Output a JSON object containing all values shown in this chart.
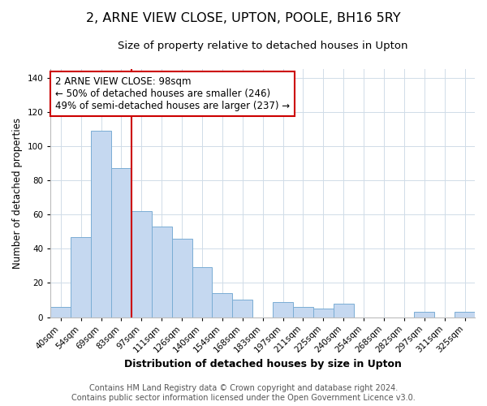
{
  "title": "2, ARNE VIEW CLOSE, UPTON, POOLE, BH16 5RY",
  "subtitle": "Size of property relative to detached houses in Upton",
  "xlabel": "Distribution of detached houses by size in Upton",
  "ylabel": "Number of detached properties",
  "bar_labels": [
    "40sqm",
    "54sqm",
    "69sqm",
    "83sqm",
    "97sqm",
    "111sqm",
    "126sqm",
    "140sqm",
    "154sqm",
    "168sqm",
    "183sqm",
    "197sqm",
    "211sqm",
    "225sqm",
    "240sqm",
    "254sqm",
    "268sqm",
    "282sqm",
    "297sqm",
    "311sqm",
    "325sqm"
  ],
  "bar_values": [
    6,
    47,
    109,
    87,
    62,
    53,
    46,
    29,
    14,
    10,
    0,
    9,
    6,
    5,
    8,
    0,
    0,
    0,
    3,
    0,
    3
  ],
  "bar_color": "#c5d8f0",
  "bar_edge_color": "#7aadd4",
  "vline_index": 4,
  "vline_color": "#cc0000",
  "ylim": [
    0,
    145
  ],
  "yticks": [
    0,
    20,
    40,
    60,
    80,
    100,
    120,
    140
  ],
  "annotation_title": "2 ARNE VIEW CLOSE: 98sqm",
  "annotation_line1": "← 50% of detached houses are smaller (246)",
  "annotation_line2": "49% of semi-detached houses are larger (237) →",
  "footer_line1": "Contains HM Land Registry data © Crown copyright and database right 2024.",
  "footer_line2": "Contains public sector information licensed under the Open Government Licence v3.0.",
  "title_fontsize": 11.5,
  "subtitle_fontsize": 9.5,
  "xlabel_fontsize": 9,
  "ylabel_fontsize": 8.5,
  "tick_fontsize": 7.5,
  "annotation_fontsize": 8.5,
  "footer_fontsize": 7
}
